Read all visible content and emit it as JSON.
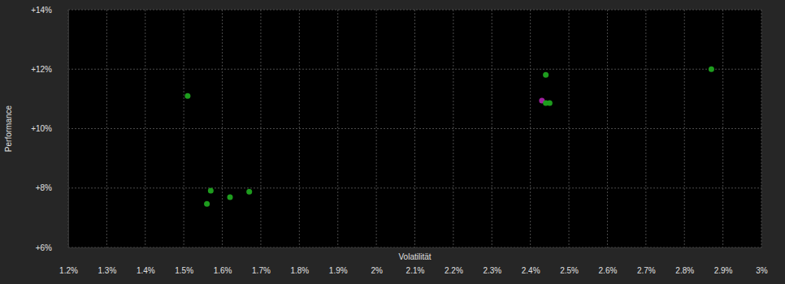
{
  "chart_data": {
    "type": "scatter",
    "x_label": "Volatilität",
    "y_label": "Performance",
    "x": [
      1.51,
      1.57,
      1.56,
      1.62,
      1.67,
      2.44,
      2.43,
      2.44,
      2.45,
      2.87
    ],
    "values": [
      11.1,
      7.91,
      7.47,
      7.69,
      7.88,
      11.81,
      10.94,
      10.86,
      10.86,
      12.0
    ],
    "colors": [
      "#1e9c1e",
      "#1e9c1e",
      "#1e9c1e",
      "#1e9c1e",
      "#1e9c1e",
      "#1e9c1e",
      "#a020a0",
      "#1e9c1e",
      "#1e9c1e",
      "#1e9c1e"
    ],
    "marker": "circle",
    "xlim": [
      1.2,
      3
    ],
    "ylim": [
      6,
      14
    ],
    "xticks": [
      {
        "value": 1.2,
        "label": "1.2%"
      },
      {
        "value": 1.3,
        "label": "1.3%"
      },
      {
        "value": 1.4,
        "label": "1.4%"
      },
      {
        "value": 1.5,
        "label": "1.5%"
      },
      {
        "value": 1.6,
        "label": "1.6%"
      },
      {
        "value": 1.7,
        "label": "1.7%"
      },
      {
        "value": 1.8,
        "label": "1.8%"
      },
      {
        "value": 1.9,
        "label": "1.9%"
      },
      {
        "value": 2,
        "label": "2%"
      },
      {
        "value": 2.1,
        "label": "2.1%"
      },
      {
        "value": 2.2,
        "label": "2.2%"
      },
      {
        "value": 2.3,
        "label": "2.3%"
      },
      {
        "value": 2.4,
        "label": "2.4%"
      },
      {
        "value": 2.5,
        "label": "2.5%"
      },
      {
        "value": 2.6,
        "label": "2.6%"
      },
      {
        "value": 2.7,
        "label": "2.7%"
      },
      {
        "value": 2.8,
        "label": "2.8%"
      },
      {
        "value": 2.9,
        "label": "2.9%"
      },
      {
        "value": 3,
        "label": "3%"
      }
    ],
    "yticks": [
      {
        "value": 6,
        "label": "+6%"
      },
      {
        "value": 8,
        "label": "+8%"
      },
      {
        "value": 10,
        "label": "+10%"
      },
      {
        "value": 12,
        "label": "+12%"
      },
      {
        "value": 14,
        "label": "+14%"
      }
    ],
    "grid": true
  }
}
